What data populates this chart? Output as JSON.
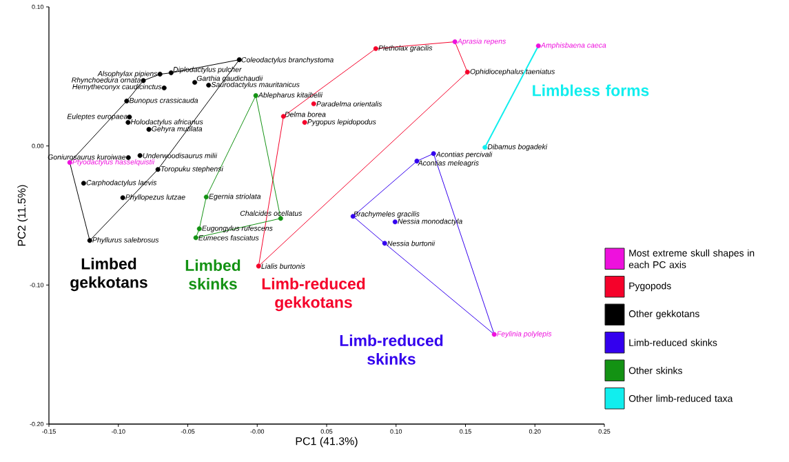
{
  "chart_data": {
    "type": "scatter",
    "xlabel": "PC1  (41.3%)",
    "ylabel": "PC2  (11.5%)",
    "marker": "circle",
    "legend": "right",
    "xlim": [
      -0.15,
      0.25
    ],
    "ylim": [
      -0.2,
      0.1
    ],
    "xticks": [
      {
        "value": -0.15,
        "label": "-0.15"
      },
      {
        "value": -0.1,
        "label": "-0.10"
      },
      {
        "value": -0.05,
        "label": "-0.05"
      },
      {
        "value": 0,
        "label": "-0.00"
      },
      {
        "value": 0.05,
        "label": "0.05"
      },
      {
        "value": 0.1,
        "label": "0.10"
      },
      {
        "value": 0.15,
        "label": "0.15"
      },
      {
        "value": 0.2,
        "label": "0.20"
      },
      {
        "value": 0.25,
        "label": "0.25"
      }
    ],
    "yticks": [
      {
        "value": -0.2,
        "label": "-0.20"
      },
      {
        "value": -0.1,
        "label": "-0.10"
      },
      {
        "value": 0,
        "label": "0.00"
      },
      {
        "value": 0.1,
        "label": "0.10"
      }
    ],
    "series": [
      {
        "name": "Most extreme skull shapes in each PC axis",
        "color": "#ee11dd",
        "x": [
          -0.135,
          0.1424,
          0.2025,
          0.1707
        ],
        "values": [
          -0.0119,
          0.0749,
          0.072,
          -0.1355
        ],
        "value_labels": [
          "Ptyodactylus hasselquistii",
          "Aprasia repens",
          "Amphisbaena caeca",
          "Feylinia polylepis"
        ]
      },
      {
        "name": "Pygopods",
        "color": "#f5022a",
        "x": [
          0.0854,
          0.1514,
          0.0407,
          0.0189,
          0.0342,
          0.001
        ],
        "values": [
          0.07,
          0.0531,
          0.0303,
          0.0213,
          0.0169,
          -0.0864
        ],
        "value_labels": [
          "Pletholax gracilis",
          "Ophidiocephalus taeniatus",
          "Paradelma orientalis",
          "Delma borea",
          "Pygopus lepidopodus",
          "Lialis burtonis"
        ]
      },
      {
        "name": "Other gekkotans",
        "color": "#000000",
        "x": [
          -0.0129,
          -0.062,
          -0.07,
          -0.082,
          -0.067,
          -0.045,
          -0.035,
          -0.094,
          -0.092,
          -0.093,
          -0.078,
          -0.0928,
          -0.0844,
          -0.0715,
          -0.125,
          -0.0968,
          -0.1206
        ],
        "values": [
          0.062,
          0.0526,
          0.0516,
          0.047,
          0.0417,
          0.0457,
          0.0437,
          0.0323,
          0.0208,
          0.0169,
          0.0119,
          -0.0084,
          -0.0069,
          -0.0169,
          -0.0268,
          -0.0372,
          -0.068
        ],
        "value_labels": [
          "Coleodactylus branchystoma",
          "Diplodactylus pulcher",
          "Alsophylax pipiens",
          "Rhynchoedura ornata",
          "Hemytheconyx caudicinctus",
          "Garthia gaudichaudii",
          "Saurodactylus mauritanicus",
          "Bunopus crassicauda",
          "Euleptes europaea",
          "Holodactylus africanus",
          "Gehyra mutilata",
          "Goniurosaurus kuroiwae",
          "Underwoodisaurus milii",
          "Toropuku stephensi",
          "Carphodactylus laevis",
          "Phyllopezus lutzae",
          "Phyllurus salebrosus"
        ]
      },
      {
        "name": "Limb-reduced skinks",
        "color": "#3300ee",
        "x": [
          0.127,
          0.115,
          0.069,
          0.0993,
          0.0918
        ],
        "values": [
          -0.0055,
          -0.0109,
          -0.0506,
          -0.0546,
          -0.07
        ],
        "value_labels": [
          "Acontias percivali",
          "Acontias meleagris",
          "Brachymeles gracilis",
          "Nessia monodactyla",
          "Nessia burtonii"
        ]
      },
      {
        "name": "Other skinks",
        "color": "#139213",
        "x": [
          -0.001,
          -0.0367,
          0.0169,
          -0.0417,
          -0.0442
        ],
        "values": [
          0.0362,
          -0.0367,
          -0.0521,
          -0.0596,
          -0.066
        ],
        "value_labels": [
          "Ablepharus kitaibelii",
          "Egernia striolata",
          "Chalcides ocellatus",
          "Eugongylus rufescens",
          "Eumeces fasciatus"
        ]
      },
      {
        "name": "Other limb-reduced taxa",
        "color": "#11eeee",
        "x": [
          0.164
        ],
        "values": [
          -0.001
        ],
        "value_labels": [
          "Dibamus bogadeki"
        ]
      },
      {
        "type": "line",
        "marker": "none",
        "color": "#000000",
        "x": [
          -0.135,
          -0.094,
          -0.082,
          -0.07,
          -0.062,
          -0.0129
        ],
        "values": [
          -0.0119,
          0.0323,
          0.047,
          0.0516,
          0.0526,
          0.062
        ]
      },
      {
        "type": "line",
        "marker": "none",
        "color": "#000000",
        "x": [
          -0.135,
          -0.1206,
          -0.0715,
          -0.0129
        ],
        "values": [
          -0.0119,
          -0.068,
          -0.0169,
          0.062
        ]
      },
      {
        "type": "line",
        "marker": "none",
        "color": "#f5022a",
        "x": [
          0.001,
          0.0189,
          0.0854,
          0.1424,
          0.1514
        ],
        "values": [
          -0.0864,
          0.0213,
          0.07,
          0.0749,
          0.0531
        ]
      },
      {
        "type": "line",
        "marker": "none",
        "color": "#f5022a",
        "x": [
          0.001,
          0.1514
        ],
        "values": [
          -0.0864,
          0.0531
        ]
      },
      {
        "type": "line",
        "marker": "none",
        "color": "#139213",
        "x": [
          -0.0442,
          -0.0417,
          -0.0367,
          -0.001,
          0.0169
        ],
        "values": [
          -0.066,
          -0.0596,
          -0.0367,
          0.0362,
          -0.0521
        ]
      },
      {
        "type": "line",
        "marker": "none",
        "color": "#139213",
        "x": [
          -0.0442,
          0.0169
        ],
        "values": [
          -0.066,
          -0.0521
        ]
      },
      {
        "type": "line",
        "marker": "none",
        "color": "#3300ee",
        "x": [
          0.069,
          0.115,
          0.127,
          0.1707
        ],
        "values": [
          -0.0506,
          -0.0109,
          -0.0055,
          -0.1355
        ]
      },
      {
        "type": "line",
        "marker": "none",
        "color": "#3300ee",
        "x": [
          0.069,
          0.0918,
          0.1707
        ],
        "values": [
          -0.0506,
          -0.07,
          -0.1355
        ]
      },
      {
        "type": "line",
        "marker": "none",
        "color": "#11eeee",
        "x": [
          0.2025,
          0.164
        ],
        "values": [
          0.072,
          -0.001
        ]
      }
    ],
    "annotations": [
      "Limbed gekkotans",
      "Limbed skinks",
      "Limb-reduced gekkotans",
      "Limb-reduced skinks",
      "Limbless forms"
    ]
  }
}
